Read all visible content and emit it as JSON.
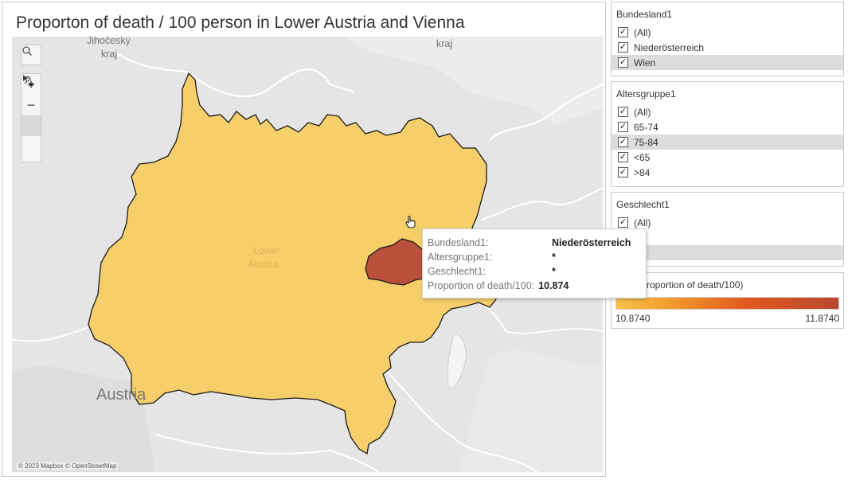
{
  "title": "Proporton of death / 100 person in Lower Austria and Vienna",
  "map": {
    "labels": {
      "jihocesky": "Jihočeský",
      "kraj_left": "kraj",
      "kraj_right": "kraj",
      "lower_austria_1": "Lower",
      "lower_austria_2": "Austria",
      "austria": "Austria"
    },
    "attribution": "© 2023 Mapbox © OpenStreetMap",
    "colors": {
      "lower_austria": "#f6cf6b",
      "vienna": "#b8503b",
      "background": "#e6e6e6"
    },
    "controls": [
      "search-icon",
      "zoom-in-icon",
      "zoom-out-icon",
      "pin-clear-icon",
      "play-icon"
    ]
  },
  "tooltip": {
    "rows": [
      {
        "key": "Bundesland1:",
        "value": "Niederösterreich"
      },
      {
        "key": "Altersgruppe1:",
        "value": "*"
      },
      {
        "key": "Geschlecht1:",
        "value": "*"
      },
      {
        "key": "Proportion of death/100:",
        "value": "10.874"
      }
    ]
  },
  "filters": {
    "bundesland": {
      "title": "Bundesland1",
      "items": [
        {
          "label": "(All)",
          "checked": true
        },
        {
          "label": "Niederösterreich",
          "checked": true
        },
        {
          "label": "Wien",
          "checked": true
        }
      ]
    },
    "altersgruppe": {
      "title": "Altersgruppe1",
      "items": [
        {
          "label": "(All)",
          "checked": true
        },
        {
          "label": "65-74",
          "checked": true
        },
        {
          "label": "75-84",
          "checked": true
        },
        {
          "label": "<65",
          "checked": true
        },
        {
          "label": ">84",
          "checked": true
        }
      ]
    },
    "geschlecht": {
      "title": "Geschlecht1",
      "items": [
        {
          "label": "(All)",
          "checked": true
        }
      ]
    }
  },
  "legend": {
    "title": "Proportion of death/100)",
    "min": "10.8740",
    "max": "11.8740"
  }
}
